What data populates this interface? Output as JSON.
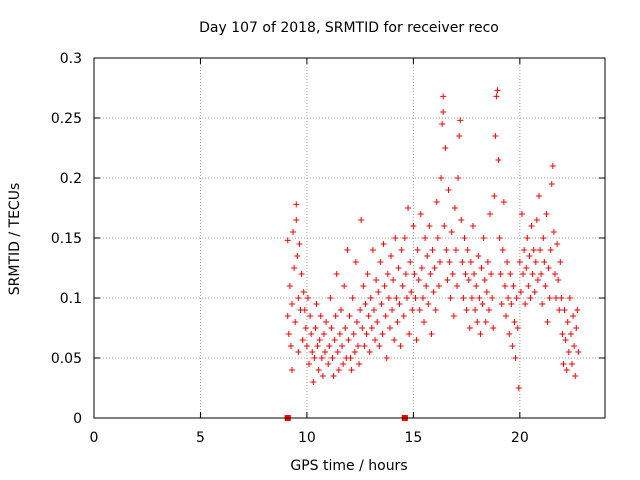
{
  "chart_data": {
    "type": "scatter",
    "title": "Day 107 of 2018, SRMTID for receiver reco",
    "xlabel": "GPS time / hours",
    "ylabel": "SRMTID / TECUs",
    "xlim": [
      0,
      24
    ],
    "ylim": [
      0,
      0.3
    ],
    "grid": true,
    "marker": "+",
    "marker_color": "#ff0000",
    "x_ticks": [
      0,
      5,
      10,
      15,
      20
    ],
    "x_tick_labels": [
      "0",
      "5",
      "10",
      "15",
      "20"
    ],
    "y_ticks": [
      0,
      0.05,
      0.1,
      0.15,
      0.2,
      0.25,
      0.3
    ],
    "y_tick_labels": [
      "0",
      "0.05",
      "0.1",
      "0.15",
      "0.2",
      "0.25",
      "0.3"
    ],
    "zero_markers": [
      {
        "x": 9.1,
        "y": 0
      },
      {
        "x": 14.6,
        "y": 0
      }
    ],
    "series": [
      {
        "name": "SRMTID",
        "color": "#ff0000",
        "points": [
          [
            9.1,
            0.148
          ],
          [
            9.1,
            0.085
          ],
          [
            9.15,
            0.07
          ],
          [
            9.2,
            0.11
          ],
          [
            9.25,
            0.06
          ],
          [
            9.3,
            0.04
          ],
          [
            9.3,
            0.095
          ],
          [
            9.35,
            0.155
          ],
          [
            9.4,
            0.125
          ],
          [
            9.45,
            0.08
          ],
          [
            9.5,
            0.178
          ],
          [
            9.5,
            0.165
          ],
          [
            9.55,
            0.135
          ],
          [
            9.6,
            0.1
          ],
          [
            9.6,
            0.055
          ],
          [
            9.65,
            0.145
          ],
          [
            9.7,
            0.09
          ],
          [
            9.75,
            0.12
          ],
          [
            9.8,
            0.065
          ],
          [
            9.85,
            0.105
          ],
          [
            9.9,
            0.09
          ],
          [
            9.95,
            0.075
          ],
          [
            10.0,
            0.06
          ],
          [
            10.05,
            0.1
          ],
          [
            10.1,
            0.045
          ],
          [
            10.15,
            0.085
          ],
          [
            10.2,
            0.07
          ],
          [
            10.25,
            0.055
          ],
          [
            10.3,
            0.03
          ],
          [
            10.35,
            0.05
          ],
          [
            10.4,
            0.075
          ],
          [
            10.45,
            0.095
          ],
          [
            10.5,
            0.06
          ],
          [
            10.55,
            0.04
          ],
          [
            10.6,
            0.065
          ],
          [
            10.65,
            0.085
          ],
          [
            10.7,
            0.05
          ],
          [
            10.75,
            0.035
          ],
          [
            10.8,
            0.07
          ],
          [
            10.85,
            0.055
          ],
          [
            10.9,
            0.08
          ],
          [
            11.0,
            0.045
          ],
          [
            11.05,
            0.06
          ],
          [
            11.1,
            0.1
          ],
          [
            11.15,
            0.075
          ],
          [
            11.2,
            0.05
          ],
          [
            11.25,
            0.035
          ],
          [
            11.3,
            0.065
          ],
          [
            11.35,
            0.085
          ],
          [
            11.4,
            0.12
          ],
          [
            11.45,
            0.055
          ],
          [
            11.5,
            0.04
          ],
          [
            11.55,
            0.07
          ],
          [
            11.6,
            0.09
          ],
          [
            11.65,
            0.06
          ],
          [
            11.7,
            0.045
          ],
          [
            11.75,
            0.11
          ],
          [
            11.8,
            0.075
          ],
          [
            11.85,
            0.05
          ],
          [
            11.9,
            0.14
          ],
          [
            11.95,
            0.065
          ],
          [
            12.0,
            0.085
          ],
          [
            12.05,
            0.05
          ],
          [
            12.1,
            0.04
          ],
          [
            12.15,
            0.1
          ],
          [
            12.2,
            0.07
          ],
          [
            12.25,
            0.055
          ],
          [
            12.3,
            0.13
          ],
          [
            12.35,
            0.08
          ],
          [
            12.4,
            0.06
          ],
          [
            12.45,
            0.045
          ],
          [
            12.5,
            0.09
          ],
          [
            12.55,
            0.165
          ],
          [
            12.6,
            0.075
          ],
          [
            12.65,
            0.11
          ],
          [
            12.7,
            0.06
          ],
          [
            12.75,
            0.095
          ],
          [
            12.8,
            0.07
          ],
          [
            12.85,
            0.12
          ],
          [
            12.9,
            0.085
          ],
          [
            12.95,
            0.055
          ],
          [
            13.0,
            0.1
          ],
          [
            13.05,
            0.075
          ],
          [
            13.1,
            0.14
          ],
          [
            13.15,
            0.09
          ],
          [
            13.2,
            0.065
          ],
          [
            13.25,
            0.115
          ],
          [
            13.3,
            0.08
          ],
          [
            13.35,
            0.105
          ],
          [
            13.4,
            0.06
          ],
          [
            13.45,
            0.13
          ],
          [
            13.5,
            0.095
          ],
          [
            13.55,
            0.07
          ],
          [
            13.6,
            0.145
          ],
          [
            13.65,
            0.11
          ],
          [
            13.7,
            0.085
          ],
          [
            13.75,
            0.05
          ],
          [
            13.8,
            0.12
          ],
          [
            13.85,
            0.1
          ],
          [
            13.9,
            0.075
          ],
          [
            13.95,
            0.135
          ],
          [
            14.0,
            0.09
          ],
          [
            14.05,
            0.115
          ],
          [
            14.1,
            0.065
          ],
          [
            14.15,
            0.15
          ],
          [
            14.2,
            0.1
          ],
          [
            14.25,
            0.08
          ],
          [
            14.3,
            0.125
          ],
          [
            14.35,
            0.095
          ],
          [
            14.4,
            0.06
          ],
          [
            14.45,
            0.14
          ],
          [
            14.5,
            0.11
          ],
          [
            14.55,
            0.085
          ],
          [
            14.6,
            0.15
          ],
          [
            14.65,
            0.12
          ],
          [
            14.7,
            0.1
          ],
          [
            14.75,
            0.175
          ],
          [
            14.8,
            0.07
          ],
          [
            14.85,
            0.13
          ],
          [
            14.9,
            0.105
          ],
          [
            14.95,
            0.09
          ],
          [
            15.0,
            0.16
          ],
          [
            15.05,
            0.12
          ],
          [
            15.1,
            0.1
          ],
          [
            15.15,
            0.065
          ],
          [
            15.2,
            0.14
          ],
          [
            15.25,
            0.115
          ],
          [
            15.3,
            0.09
          ],
          [
            15.35,
            0.17
          ],
          [
            15.4,
            0.125
          ],
          [
            15.45,
            0.1
          ],
          [
            15.5,
            0.08
          ],
          [
            15.55,
            0.15
          ],
          [
            15.6,
            0.11
          ],
          [
            15.65,
            0.135
          ],
          [
            15.7,
            0.095
          ],
          [
            15.75,
            0.16
          ],
          [
            15.8,
            0.12
          ],
          [
            15.85,
            0.07
          ],
          [
            15.9,
            0.14
          ],
          [
            15.95,
            0.105
          ],
          [
            16.0,
            0.125
          ],
          [
            16.05,
            0.09
          ],
          [
            16.1,
            0.18
          ],
          [
            16.15,
            0.15
          ],
          [
            16.2,
            0.11
          ],
          [
            16.25,
            0.13
          ],
          [
            16.3,
            0.2
          ],
          [
            16.35,
            0.245
          ],
          [
            16.4,
            0.255
          ],
          [
            16.4,
            0.268
          ],
          [
            16.45,
            0.16
          ],
          [
            16.5,
            0.225
          ],
          [
            16.55,
            0.14
          ],
          [
            16.6,
            0.115
          ],
          [
            16.65,
            0.19
          ],
          [
            16.7,
            0.13
          ],
          [
            16.75,
            0.1
          ],
          [
            16.8,
            0.155
          ],
          [
            16.85,
            0.12
          ],
          [
            16.9,
            0.085
          ],
          [
            16.95,
            0.175
          ],
          [
            17.0,
            0.14
          ],
          [
            17.05,
            0.11
          ],
          [
            17.1,
            0.2
          ],
          [
            17.15,
            0.235
          ],
          [
            17.2,
            0.248
          ],
          [
            17.25,
            0.165
          ],
          [
            17.3,
            0.13
          ],
          [
            17.35,
            0.1
          ],
          [
            17.4,
            0.15
          ],
          [
            17.45,
            0.12
          ],
          [
            17.5,
            0.09
          ],
          [
            17.55,
            0.14
          ],
          [
            17.6,
            0.115
          ],
          [
            17.65,
            0.075
          ],
          [
            17.7,
            0.13
          ],
          [
            17.75,
            0.1
          ],
          [
            17.8,
            0.16
          ],
          [
            17.85,
            0.12
          ],
          [
            17.9,
            0.09
          ],
          [
            17.95,
            0.11
          ],
          [
            18.0,
            0.08
          ],
          [
            18.05,
            0.135
          ],
          [
            18.1,
            0.1
          ],
          [
            18.15,
            0.07
          ],
          [
            18.2,
            0.125
          ],
          [
            18.25,
            0.095
          ],
          [
            18.3,
            0.15
          ],
          [
            18.35,
            0.115
          ],
          [
            18.4,
            0.08
          ],
          [
            18.45,
            0.105
          ],
          [
            18.5,
            0.13
          ],
          [
            18.55,
            0.09
          ],
          [
            18.6,
            0.17
          ],
          [
            18.65,
            0.12
          ],
          [
            18.7,
            0.1
          ],
          [
            18.75,
            0.075
          ],
          [
            18.8,
            0.185
          ],
          [
            18.85,
            0.235
          ],
          [
            18.9,
            0.268
          ],
          [
            18.95,
            0.273
          ],
          [
            19.0,
            0.215
          ],
          [
            19.05,
            0.15
          ],
          [
            19.1,
            0.12
          ],
          [
            19.15,
            0.095
          ],
          [
            19.2,
            0.14
          ],
          [
            19.25,
            0.18
          ],
          [
            19.3,
            0.11
          ],
          [
            19.35,
            0.085
          ],
          [
            19.4,
            0.13
          ],
          [
            19.45,
            0.1
          ],
          [
            19.5,
            0.07
          ],
          [
            19.55,
            0.12
          ],
          [
            19.6,
            0.095
          ],
          [
            19.65,
            0.06
          ],
          [
            19.7,
            0.11
          ],
          [
            19.75,
            0.08
          ],
          [
            19.8,
            0.05
          ],
          [
            19.85,
            0.1
          ],
          [
            19.9,
            0.075
          ],
          [
            19.95,
            0.025
          ],
          [
            20.0,
            0.13
          ],
          [
            20.05,
            0.105
          ],
          [
            20.1,
            0.17
          ],
          [
            20.15,
            0.12
          ],
          [
            20.2,
            0.14
          ],
          [
            20.25,
            0.095
          ],
          [
            20.3,
            0.125
          ],
          [
            20.35,
            0.15
          ],
          [
            20.4,
            0.11
          ],
          [
            20.45,
            0.135
          ],
          [
            20.5,
            0.1
          ],
          [
            20.55,
            0.16
          ],
          [
            20.6,
            0.12
          ],
          [
            20.65,
            0.14
          ],
          [
            20.7,
            0.105
          ],
          [
            20.75,
            0.13
          ],
          [
            20.8,
            0.165
          ],
          [
            20.85,
            0.115
          ],
          [
            20.9,
            0.185
          ],
          [
            20.95,
            0.14
          ],
          [
            21.0,
            0.12
          ],
          [
            21.05,
            0.095
          ],
          [
            21.1,
            0.15
          ],
          [
            21.15,
            0.13
          ],
          [
            21.2,
            0.11
          ],
          [
            21.25,
            0.17
          ],
          [
            21.3,
            0.08
          ],
          [
            21.35,
            0.125
          ],
          [
            21.4,
            0.1
          ],
          [
            21.45,
            0.14
          ],
          [
            21.5,
            0.195
          ],
          [
            21.55,
            0.21
          ],
          [
            21.6,
            0.155
          ],
          [
            21.65,
            0.12
          ],
          [
            21.7,
            0.1
          ],
          [
            21.75,
            0.145
          ],
          [
            21.8,
            0.115
          ],
          [
            21.85,
            0.09
          ],
          [
            21.9,
            0.13
          ],
          [
            21.95,
            0.1
          ],
          [
            22.0,
            0.07
          ],
          [
            22.05,
            0.045
          ],
          [
            22.1,
            0.09
          ],
          [
            22.15,
            0.065
          ],
          [
            22.2,
            0.04
          ],
          [
            22.25,
            0.08
          ],
          [
            22.3,
            0.055
          ],
          [
            22.35,
            0.1
          ],
          [
            22.4,
            0.07
          ],
          [
            22.45,
            0.045
          ],
          [
            22.5,
            0.085
          ],
          [
            22.55,
            0.06
          ],
          [
            22.6,
            0.035
          ],
          [
            22.65,
            0.075
          ],
          [
            22.7,
            0.09
          ],
          [
            22.75,
            0.055
          ]
        ]
      }
    ]
  }
}
